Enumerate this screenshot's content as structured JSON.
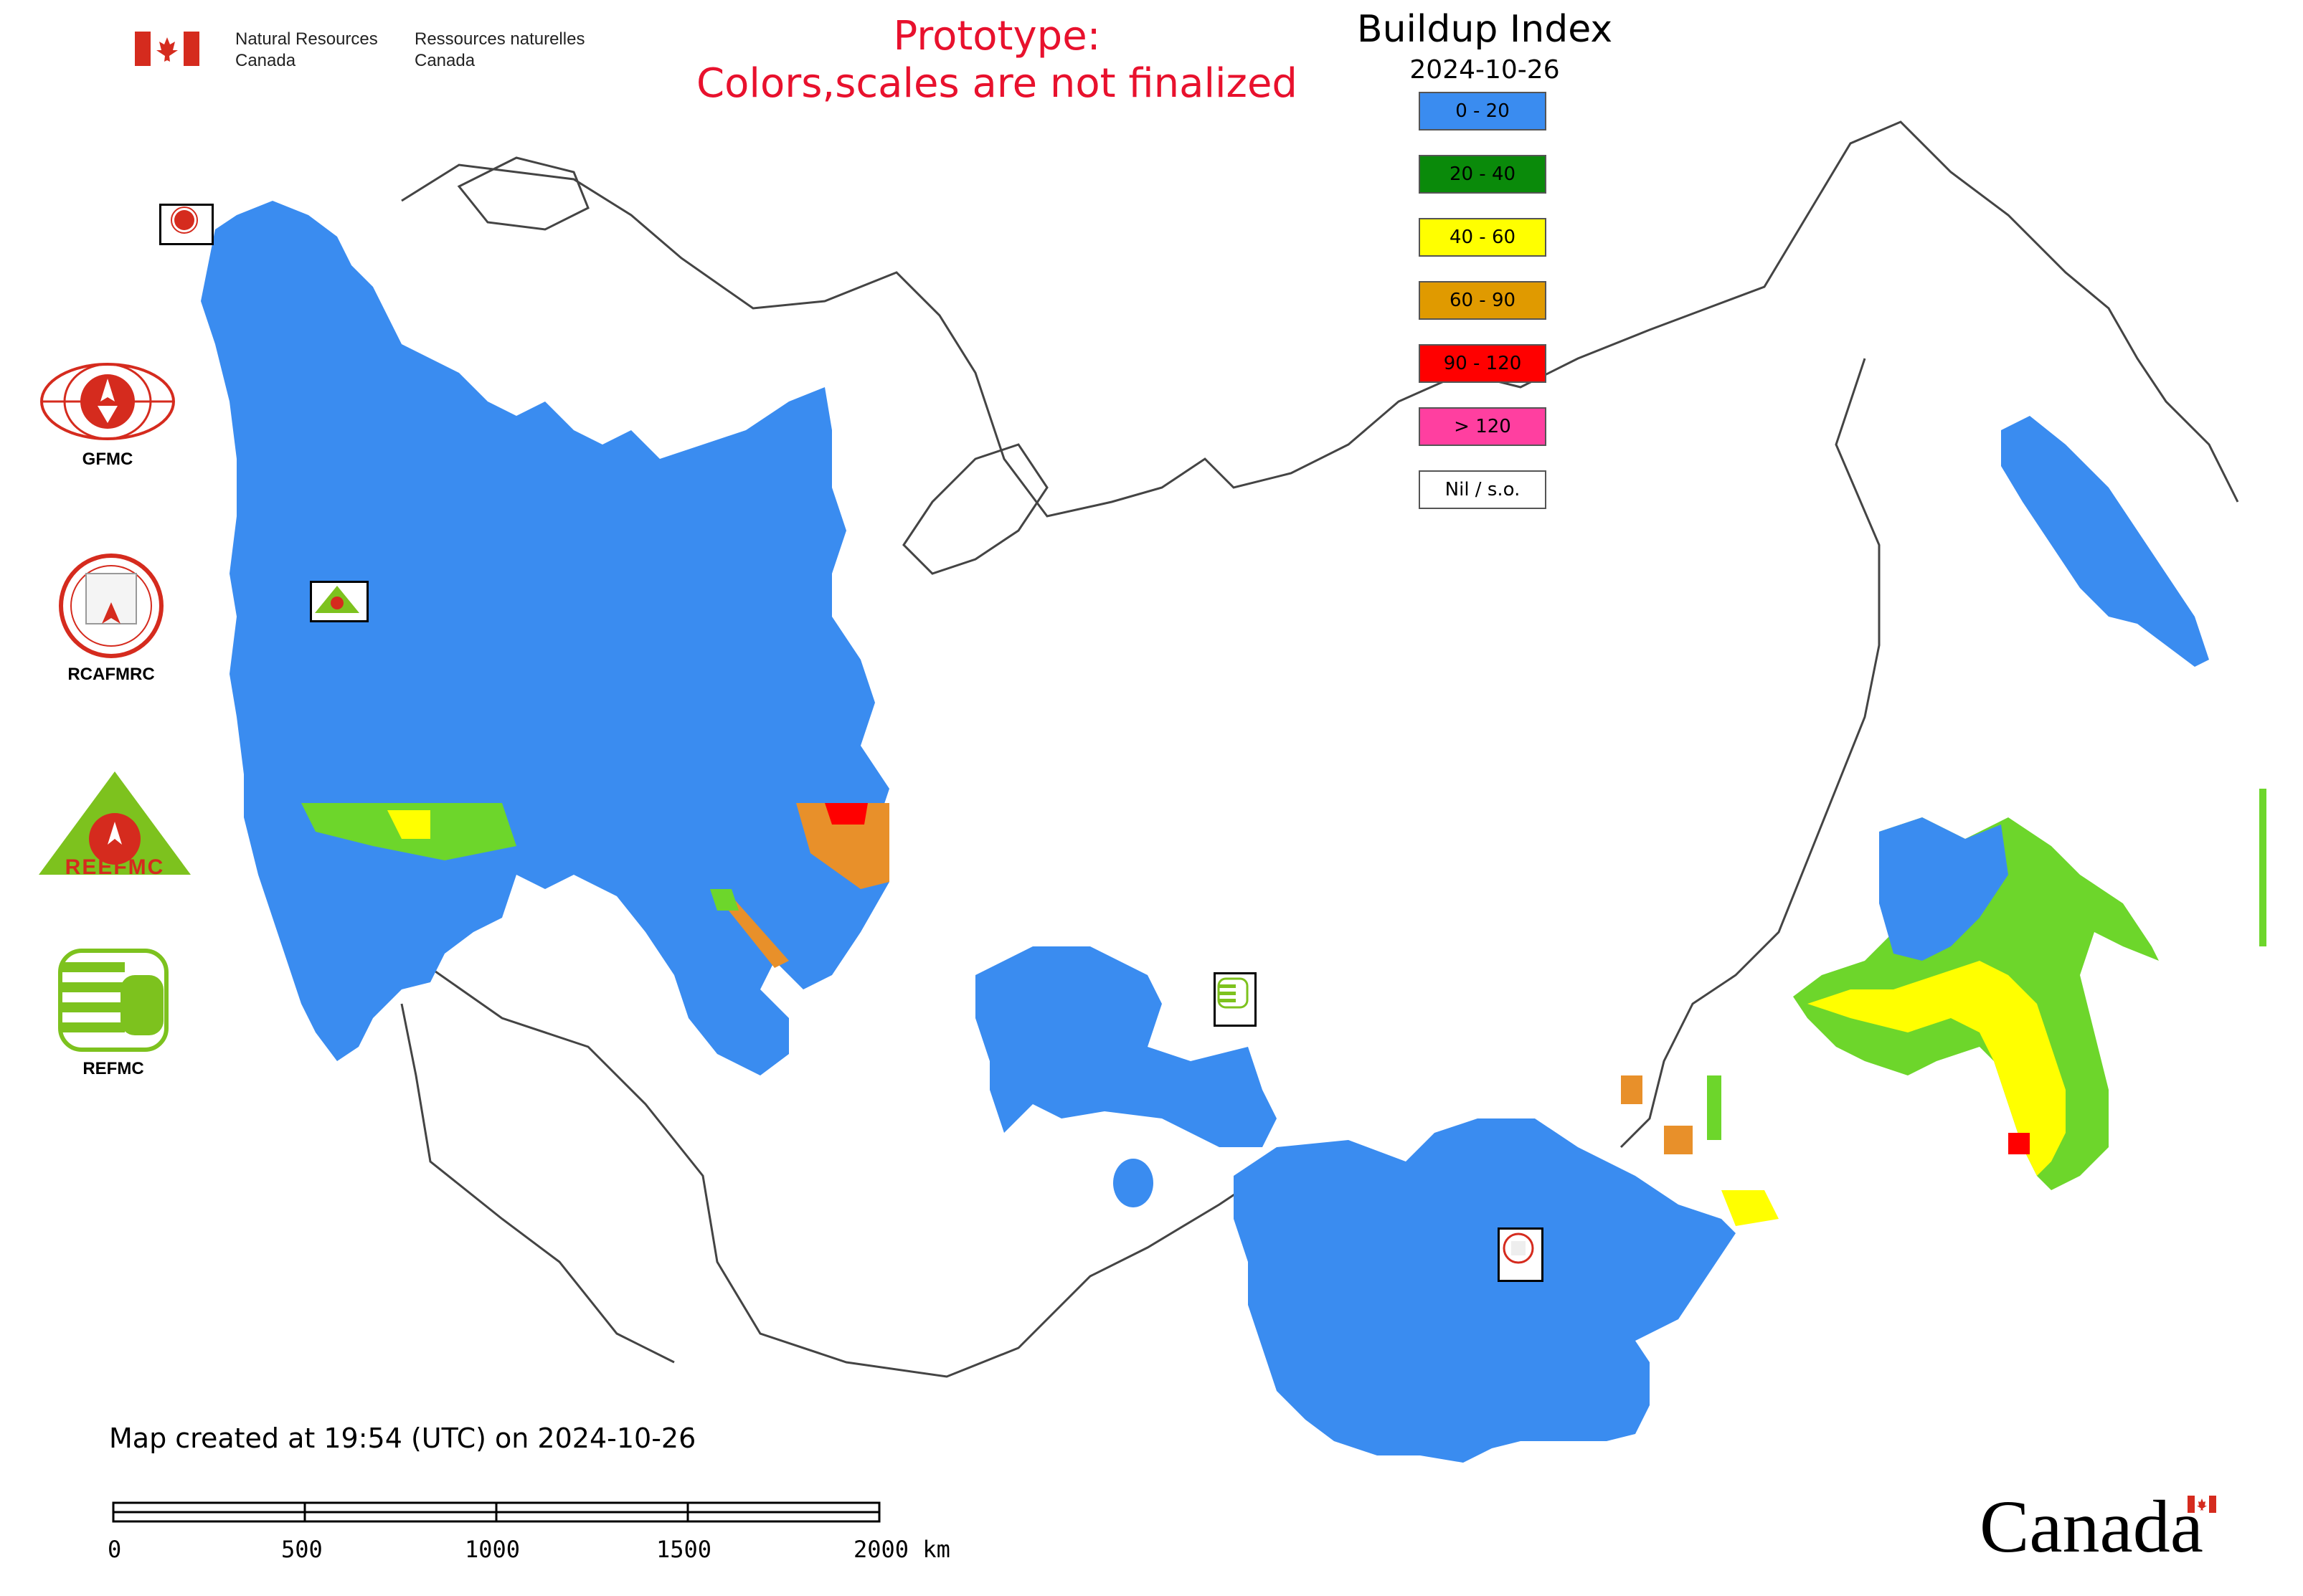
{
  "header": {
    "org_en_line1": "Natural Resources",
    "org_en_line2": "Canada",
    "org_fr_line1": "Ressources naturelles",
    "org_fr_line2": "Canada",
    "prototype_line1": "Prototype:",
    "prototype_line2": "Colors,scales are not finalized"
  },
  "legend": {
    "title": "Buildup Index",
    "date": "2024-10-26",
    "items": [
      {
        "label": "0 - 20",
        "color": "#3a8cf0"
      },
      {
        "label": "20 - 40",
        "color": "#0a8a0a"
      },
      {
        "label": "40 - 60",
        "color": "#ffff00"
      },
      {
        "label": "60 - 90",
        "color": "#e09a00"
      },
      {
        "label": "90 - 120",
        "color": "#ff0000"
      },
      {
        "label": "> 120",
        "color": "#ff3fa0"
      },
      {
        "label": "Nil / s.o.",
        "color": "#ffffff"
      }
    ]
  },
  "agencies": [
    {
      "name": "GFMC",
      "icon": "gfmc-logo-icon"
    },
    {
      "name": "RCAFMRC",
      "icon": "rcafmrc-logo-icon"
    },
    {
      "name": "REEFMC",
      "icon": "reefmc-logo-icon"
    },
    {
      "name": "REFMC",
      "icon": "refmc-logo-icon"
    }
  ],
  "footer": {
    "created": "Map created at 19:54 (UTC) on 2024-10-26",
    "scale_ticks": [
      "0",
      "500",
      "1000",
      "1500",
      "2000 km"
    ],
    "wordmark": "Canada"
  },
  "colors": {
    "low": "#3a8cf0",
    "green": "#6dd62b",
    "yellow": "#ffff00",
    "orange": "#e8902a",
    "red": "#ff0000",
    "border": "#555555"
  }
}
